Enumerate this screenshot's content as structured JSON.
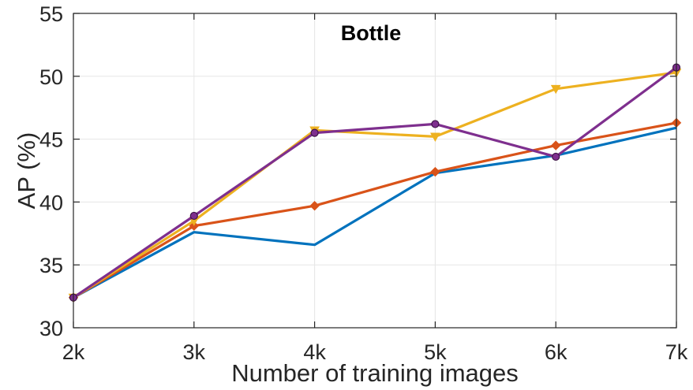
{
  "chart_data": {
    "type": "line",
    "title": "Bottle",
    "xlabel": "Number of  training images",
    "ylabel": "AP (%)",
    "x": [
      "2k",
      "3k",
      "4k",
      "5k",
      "6k",
      "7k"
    ],
    "ylim": [
      30,
      55
    ],
    "yticks": [
      30,
      35,
      40,
      45,
      50,
      55
    ],
    "grid": true,
    "series": [
      {
        "color": "#0072BD",
        "marker": "none",
        "values": [
          32.4,
          37.6,
          36.6,
          42.3,
          43.7,
          45.9
        ]
      },
      {
        "color": "#D95319",
        "marker": "diamond",
        "values": [
          32.4,
          38.1,
          39.7,
          42.4,
          44.5,
          46.3
        ]
      },
      {
        "color": "#EDB120",
        "marker": "triangle",
        "values": [
          32.4,
          38.5,
          45.7,
          45.2,
          49.0,
          50.3
        ]
      },
      {
        "color": "#7E2F8E",
        "marker": "circle",
        "values": [
          32.4,
          38.9,
          45.5,
          46.2,
          43.6,
          50.7
        ]
      }
    ]
  }
}
